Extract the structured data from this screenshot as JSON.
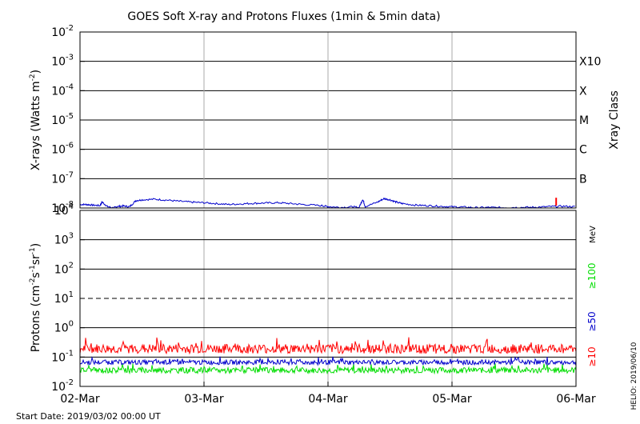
{
  "chart_data": [
    {
      "type": "line",
      "title": "GOES Soft X-ray and Protons Fluxes   (1min & 5min data)",
      "ylabel_main": "X-rays (Watts m",
      "ylabel_sup": "-2",
      "ylabel_end": ")",
      "yscale": "log",
      "ylim_exp": [
        -8,
        -2
      ],
      "ytick_exponents": [
        "-8",
        "-7",
        "-6",
        "-5",
        "-4",
        "-3",
        "-2"
      ],
      "right_class_labels": [
        "B",
        "C",
        "M",
        "X",
        "X10"
      ],
      "right_axis_title": "Xray Class",
      "grid": true,
      "series": [
        {
          "color": "#0000cc",
          "points": [
            [
              0,
              -7.88
            ],
            [
              0.05,
              -7.88
            ],
            [
              0.1,
              -7.9
            ],
            [
              0.16,
              -7.92
            ],
            [
              0.18,
              -7.8
            ],
            [
              0.22,
              -7.95
            ],
            [
              0.27,
              -8.0
            ],
            [
              0.3,
              -7.95
            ],
            [
              0.35,
              -7.93
            ],
            [
              0.4,
              -7.96
            ],
            [
              0.45,
              -7.75
            ],
            [
              0.5,
              -7.72
            ],
            [
              0.6,
              -7.7
            ],
            [
              0.7,
              -7.73
            ],
            [
              0.8,
              -7.77
            ],
            [
              0.9,
              -7.8
            ],
            [
              1.0,
              -7.82
            ],
            [
              1.1,
              -7.85
            ],
            [
              1.2,
              -7.88
            ],
            [
              1.3,
              -7.86
            ],
            [
              1.4,
              -7.84
            ],
            [
              1.5,
              -7.83
            ],
            [
              1.6,
              -7.82
            ],
            [
              1.7,
              -7.85
            ],
            [
              1.8,
              -7.88
            ],
            [
              1.95,
              -7.92
            ],
            [
              2.0,
              -7.95
            ],
            [
              2.1,
              -7.98
            ],
            [
              2.2,
              -7.96
            ],
            [
              2.25,
              -7.99
            ],
            [
              2.28,
              -7.7
            ],
            [
              2.3,
              -7.95
            ],
            [
              2.4,
              -7.8
            ],
            [
              2.45,
              -7.68
            ],
            [
              2.5,
              -7.72
            ],
            [
              2.55,
              -7.8
            ],
            [
              2.6,
              -7.85
            ],
            [
              2.7,
              -7.9
            ],
            [
              2.8,
              -7.92
            ],
            [
              2.9,
              -7.94
            ],
            [
              3.0,
              -7.96
            ],
            [
              3.1,
              -7.97
            ],
            [
              3.2,
              -7.99
            ],
            [
              3.3,
              -7.98
            ],
            [
              3.4,
              -7.99
            ],
            [
              3.5,
              -7.98
            ],
            [
              3.6,
              -7.98
            ],
            [
              3.7,
              -7.97
            ],
            [
              3.8,
              -7.95
            ],
            [
              3.9,
              -7.94
            ],
            [
              4.0,
              -7.96
            ]
          ]
        }
      ],
      "annotations": [
        {
          "day": 3.84,
          "exp": -7.65,
          "color": "#ff0000",
          "text": "flare marker"
        }
      ]
    },
    {
      "type": "line",
      "ylabel": "Protons (cm",
      "ylabel_parts": [
        "-2",
        "s",
        "-1",
        "sr",
        "-1",
        ")"
      ],
      "yscale": "log",
      "ylim_exp": [
        -2,
        4
      ],
      "ytick_labels": [
        {
          "base": "10",
          "exp": "-2"
        },
        {
          "base": "10",
          "exp": "-1"
        },
        {
          "base": "10",
          "exp": "0"
        },
        {
          "base": "10",
          "exp": "1"
        },
        {
          "base": "10",
          "exp": "2"
        },
        {
          "base": "10",
          "exp": "3"
        },
        {
          "base": "10",
          "exp": "4"
        }
      ],
      "threshold_exp": 1,
      "grid": true,
      "xlim_days": [
        0,
        4
      ],
      "xtick_labels": [
        "02-Mar",
        "03-Mar",
        "04-Mar",
        "05-Mar",
        "06-Mar"
      ],
      "legend_unit": "MeV",
      "series": [
        {
          "name": "≥10",
          "color": "#ff0000",
          "mean_exp": -0.72,
          "jitter": 0.16
        },
        {
          "name": "≥50",
          "color": "#0000cc",
          "mean_exp": -1.18,
          "jitter": 0.08
        },
        {
          "name": "≥100",
          "color": "#00dd00",
          "mean_exp": -1.45,
          "jitter": 0.1
        }
      ]
    }
  ],
  "footer": {
    "start_date": "Start Date: 2019/03/02 00:00 UT",
    "credit": "HELIO: 2019/06/10"
  }
}
